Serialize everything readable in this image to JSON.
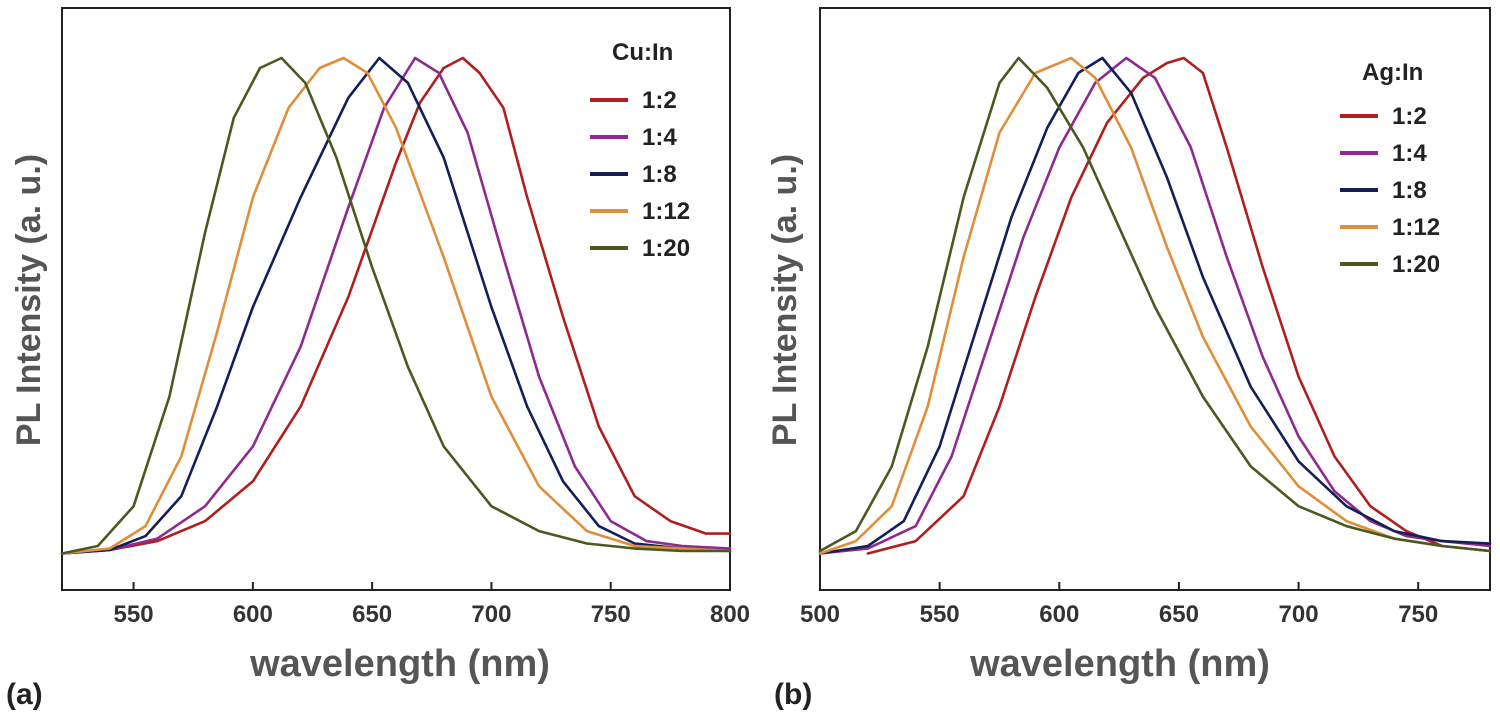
{
  "chart_data": [
    {
      "type": "line",
      "panel_label": "(a)",
      "title": "",
      "xlabel": "wavelength (nm)",
      "ylabel": "PL Intensity (a. u.)",
      "xlim": [
        520,
        800
      ],
      "ylim": [
        0,
        1.05
      ],
      "xticks": [
        550,
        600,
        650,
        700,
        750,
        800
      ],
      "yticks_shown": false,
      "grid": false,
      "legend_title": "Cu:In",
      "legend_position": "top-right",
      "series": [
        {
          "name": "1:2",
          "color": "#b01e1e",
          "x": [
            520,
            540,
            560,
            580,
            600,
            620,
            640,
            660,
            670,
            680,
            688,
            695,
            705,
            715,
            730,
            745,
            760,
            775,
            790,
            800
          ],
          "y": [
            0.005,
            0.012,
            0.03,
            0.07,
            0.15,
            0.3,
            0.52,
            0.79,
            0.91,
            0.98,
            1.0,
            0.97,
            0.9,
            0.72,
            0.48,
            0.26,
            0.12,
            0.07,
            0.045,
            0.045
          ]
        },
        {
          "name": "1:4",
          "color": "#8e2a8e",
          "x": [
            520,
            540,
            560,
            580,
            600,
            620,
            640,
            655,
            668,
            678,
            690,
            705,
            720,
            735,
            750,
            765,
            780,
            800
          ],
          "y": [
            0.005,
            0.012,
            0.035,
            0.1,
            0.22,
            0.42,
            0.7,
            0.9,
            1.0,
            0.97,
            0.85,
            0.6,
            0.36,
            0.18,
            0.07,
            0.03,
            0.02,
            0.015
          ]
        },
        {
          "name": "1:8",
          "color": "#141e5a",
          "x": [
            520,
            540,
            555,
            570,
            585,
            600,
            620,
            640,
            653,
            665,
            680,
            700,
            715,
            730,
            745,
            760,
            780,
            800
          ],
          "y": [
            0.005,
            0.012,
            0.04,
            0.12,
            0.3,
            0.5,
            0.72,
            0.92,
            1.0,
            0.95,
            0.8,
            0.5,
            0.3,
            0.15,
            0.06,
            0.025,
            0.015,
            0.01
          ]
        },
        {
          "name": "1:12",
          "color": "#e08e3a",
          "x": [
            520,
            540,
            555,
            570,
            585,
            600,
            615,
            628,
            638,
            648,
            660,
            680,
            700,
            720,
            740,
            760,
            780,
            800
          ],
          "y": [
            0.005,
            0.015,
            0.06,
            0.2,
            0.45,
            0.72,
            0.9,
            0.98,
            1.0,
            0.97,
            0.86,
            0.6,
            0.32,
            0.14,
            0.05,
            0.02,
            0.015,
            0.01
          ]
        },
        {
          "name": "1:20",
          "color": "#4a5a1e",
          "x": [
            520,
            535,
            550,
            565,
            580,
            592,
            603,
            612,
            622,
            635,
            650,
            665,
            680,
            700,
            720,
            740,
            760,
            780,
            800
          ],
          "y": [
            0.005,
            0.02,
            0.1,
            0.32,
            0.65,
            0.88,
            0.98,
            1.0,
            0.95,
            0.8,
            0.58,
            0.38,
            0.22,
            0.1,
            0.05,
            0.025,
            0.015,
            0.01,
            0.01
          ]
        }
      ]
    },
    {
      "type": "line",
      "panel_label": "(b)",
      "title": "",
      "xlabel": "wavelength (nm)",
      "ylabel": "PL Intensity (a. u.)",
      "xlim": [
        500,
        780
      ],
      "ylim": [
        0,
        1.05
      ],
      "xticks": [
        500,
        550,
        600,
        650,
        700,
        750
      ],
      "yticks_shown": false,
      "grid": false,
      "legend_title": "Ag:In",
      "legend_position": "top-right",
      "series": [
        {
          "name": "1:2",
          "color": "#b01e1e",
          "x": [
            520,
            540,
            560,
            575,
            590,
            605,
            620,
            635,
            645,
            652,
            660,
            670,
            685,
            700,
            715,
            730,
            745,
            760,
            780
          ],
          "y": [
            0.005,
            0.03,
            0.12,
            0.3,
            0.52,
            0.72,
            0.87,
            0.96,
            0.99,
            1.0,
            0.97,
            0.82,
            0.58,
            0.36,
            0.2,
            0.1,
            0.05,
            0.02,
            0.01
          ]
        },
        {
          "name": "1:4",
          "color": "#8e2a8e",
          "x": [
            500,
            520,
            540,
            555,
            570,
            585,
            600,
            615,
            628,
            640,
            655,
            670,
            685,
            700,
            715,
            730,
            745,
            760,
            780
          ],
          "y": [
            0.005,
            0.015,
            0.06,
            0.2,
            0.42,
            0.64,
            0.82,
            0.95,
            1.0,
            0.96,
            0.82,
            0.6,
            0.4,
            0.24,
            0.13,
            0.07,
            0.04,
            0.03,
            0.02
          ]
        },
        {
          "name": "1:8",
          "color": "#141e5a",
          "x": [
            500,
            520,
            535,
            550,
            565,
            580,
            595,
            608,
            618,
            630,
            645,
            660,
            680,
            700,
            720,
            740,
            760,
            780
          ],
          "y": [
            0.005,
            0.02,
            0.07,
            0.22,
            0.45,
            0.68,
            0.86,
            0.97,
            1.0,
            0.93,
            0.76,
            0.56,
            0.34,
            0.19,
            0.1,
            0.05,
            0.03,
            0.025
          ]
        },
        {
          "name": "1:12",
          "color": "#e08e3a",
          "x": [
            500,
            515,
            530,
            545,
            560,
            575,
            590,
            605,
            615,
            630,
            645,
            660,
            680,
            700,
            720,
            740,
            760,
            780
          ],
          "y": [
            0.005,
            0.03,
            0.1,
            0.3,
            0.6,
            0.85,
            0.97,
            1.0,
            0.96,
            0.82,
            0.62,
            0.44,
            0.26,
            0.14,
            0.07,
            0.035,
            0.02,
            0.01
          ]
        },
        {
          "name": "1:20",
          "color": "#4a5a1e",
          "x": [
            500,
            515,
            530,
            545,
            560,
            575,
            583,
            595,
            610,
            625,
            640,
            660,
            680,
            700,
            720,
            740,
            760,
            780
          ],
          "y": [
            0.01,
            0.05,
            0.18,
            0.42,
            0.72,
            0.95,
            1.0,
            0.94,
            0.82,
            0.66,
            0.5,
            0.32,
            0.18,
            0.1,
            0.06,
            0.035,
            0.02,
            0.01
          ]
        }
      ]
    }
  ]
}
